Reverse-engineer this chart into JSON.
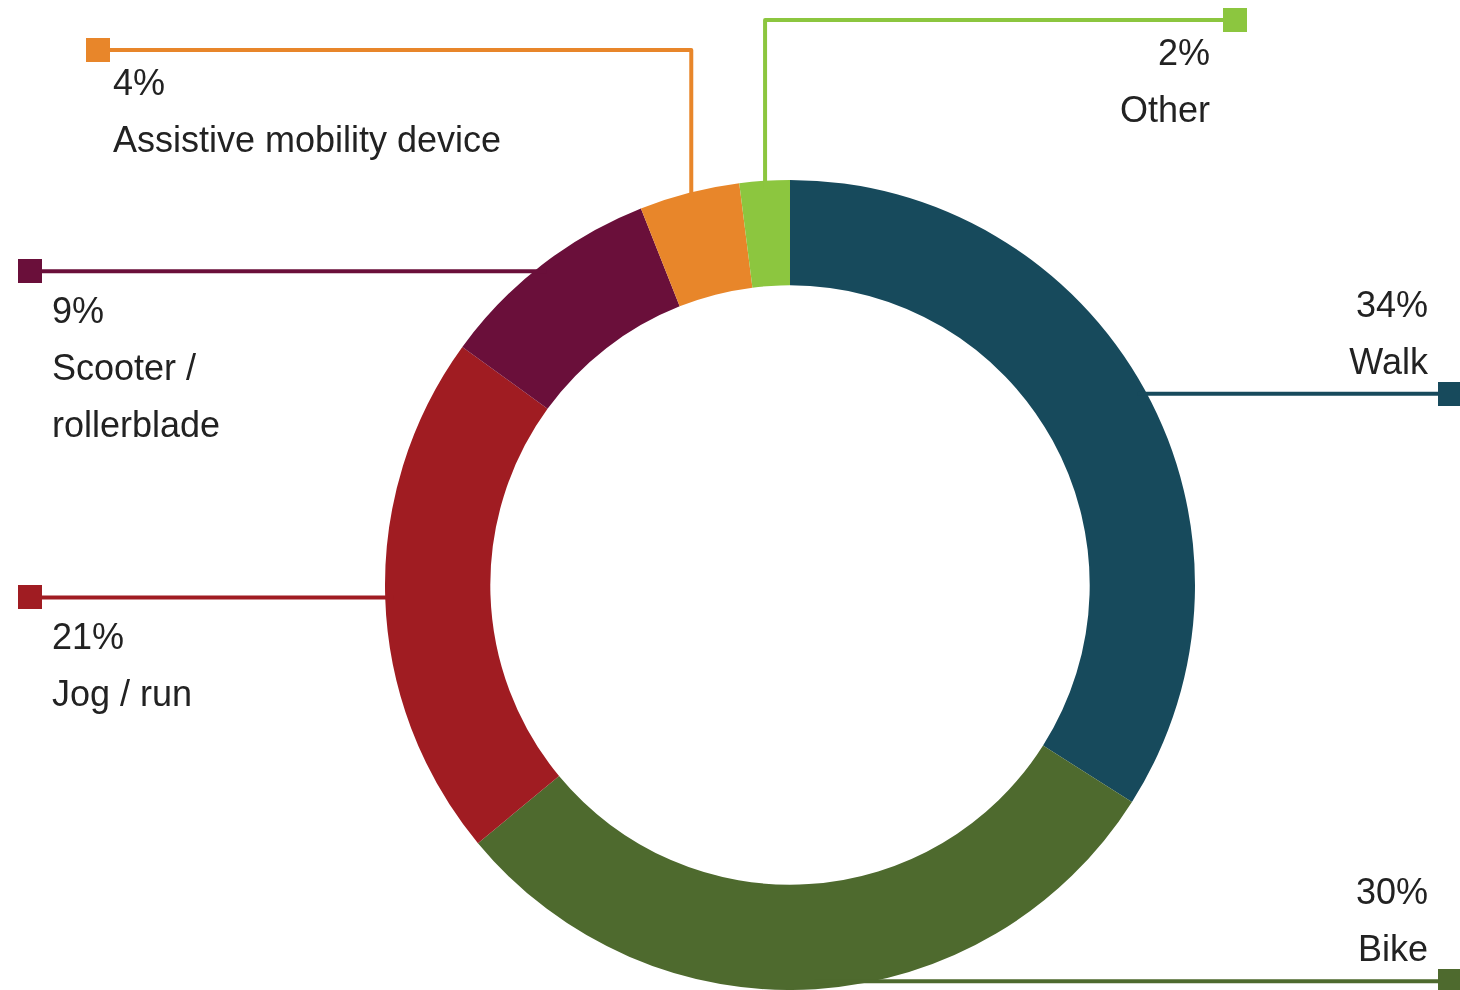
{
  "chart_data": {
    "type": "donut",
    "categories": [
      "Walk",
      "Bike",
      "Jog / run",
      "Scooter / rollerblade",
      "Assistive mobility device",
      "Other"
    ],
    "values": [
      34,
      30,
      21,
      9,
      4,
      2
    ],
    "value_labels": [
      "34%",
      "30%",
      "21%",
      "9%",
      "4%",
      "2%"
    ],
    "colors": [
      "#174a5c",
      "#4e6a2e",
      "#a01c22",
      "#6a0f3a",
      "#e8862a",
      "#8cc63f"
    ]
  }
}
